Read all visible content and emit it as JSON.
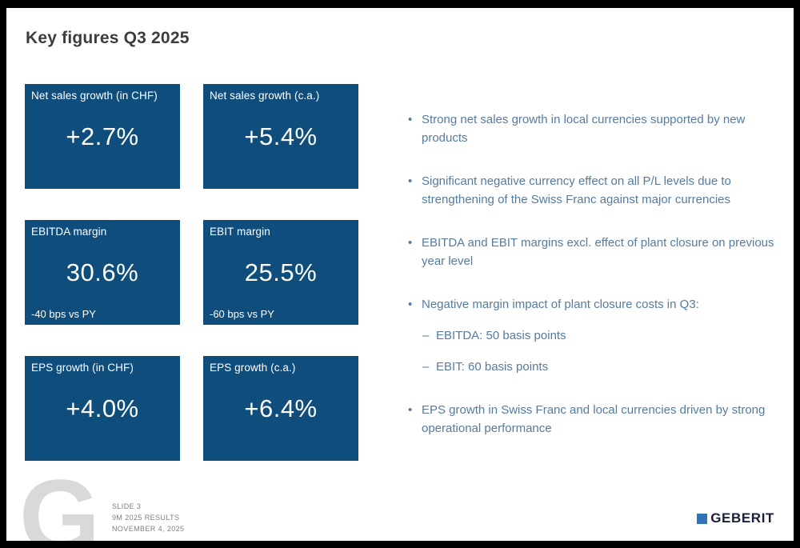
{
  "slide": {
    "title": "Key figures Q3 2025"
  },
  "kpi_boxes": [
    {
      "label": "Net sales growth (in CHF)",
      "value": "+2.7%"
    },
    {
      "label": "Net sales growth (c.a.)",
      "value": "+5.4%"
    },
    {
      "label": "EBITDA margin",
      "value": "30.6%",
      "sub": "-40 bps vs PY"
    },
    {
      "label": "EBIT margin",
      "value": "25.5%",
      "sub": "-60 bps vs PY"
    },
    {
      "label": "EPS growth (in CHF)",
      "value": "+4.0%"
    },
    {
      "label": "EPS growth (c.a.)",
      "value": "+6.4%"
    }
  ],
  "bullets": [
    {
      "level": 1,
      "marker": "•",
      "text": "Strong net sales growth in local currencies supported by new products"
    },
    {
      "level": 1,
      "marker": "•",
      "text": "Significant negative currency effect on all P/L levels due to strengthening of the Swiss Franc against major currencies"
    },
    {
      "level": 1,
      "marker": "•",
      "text": "EBITDA and EBIT margins excl. effect of plant closure on previous year level"
    },
    {
      "level": 1,
      "marker": "•",
      "text": "Negative margin impact of plant closure costs in Q3:"
    },
    {
      "level": 2,
      "marker": "–",
      "text": "EBITDA: 50 basis points"
    },
    {
      "level": 2,
      "marker": "–",
      "text": "EBIT: 60 basis points"
    },
    {
      "level": 1,
      "marker": "•",
      "text": "EPS growth in Swiss Franc and local currencies driven by strong operational performance"
    }
  ],
  "footer": {
    "watermark": "G",
    "slide_number": "SLIDE 3",
    "subtitle": "9M 2025 RESULTS",
    "date": "NOVEMBER 4, 2025",
    "logo_text": "GEBERIT"
  },
  "colors": {
    "kpi_box_background": "#0e4d7c",
    "bullet_text": "#567b9e",
    "title_text": "#3c3c3b",
    "footer_text": "#7f7f7f",
    "watermark": "#d9d9d9",
    "logo_square": "#2e74b6",
    "logo_text": "#181f38"
  }
}
